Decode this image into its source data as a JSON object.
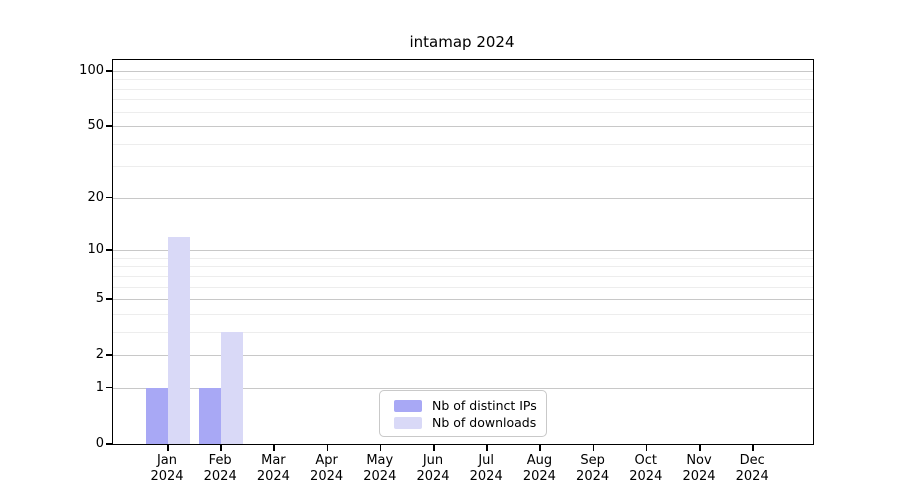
{
  "chart_data": {
    "type": "bar",
    "title": "intamap 2024",
    "categories": [
      "Jan",
      "Feb",
      "Mar",
      "Apr",
      "May",
      "Jun",
      "Jul",
      "Aug",
      "Sep",
      "Oct",
      "Nov",
      "Dec"
    ],
    "year_label": "2024",
    "series": [
      {
        "name": "Nb of distinct IPs",
        "color": "#a8a8f5",
        "values": [
          1,
          1,
          0,
          0,
          0,
          0,
          0,
          0,
          0,
          0,
          0,
          0
        ]
      },
      {
        "name": "Nb of downloads",
        "color": "#d9d9f7",
        "values": [
          12,
          3,
          0,
          0,
          0,
          0,
          0,
          0,
          0,
          0,
          0,
          0
        ]
      }
    ],
    "xlabel": "",
    "ylabel": "",
    "yscale": "log1p",
    "ylim": [
      0,
      115
    ],
    "yticks_major": [
      0,
      1,
      2,
      5,
      10,
      20,
      50,
      100
    ],
    "ytick_labels": [
      "0",
      "1",
      "2",
      "5",
      "10",
      "20",
      "50",
      "100"
    ],
    "yticks_minor": [
      3,
      4,
      6,
      7,
      8,
      9,
      30,
      40,
      60,
      70,
      80,
      90
    ],
    "grid": "horizontal",
    "legend_position": "lower center-right inside plot",
    "colors": {
      "major_grid": "#c8c8c8",
      "minor_grid": "#ededed",
      "spine": "#000000",
      "background": "#ffffff"
    }
  }
}
